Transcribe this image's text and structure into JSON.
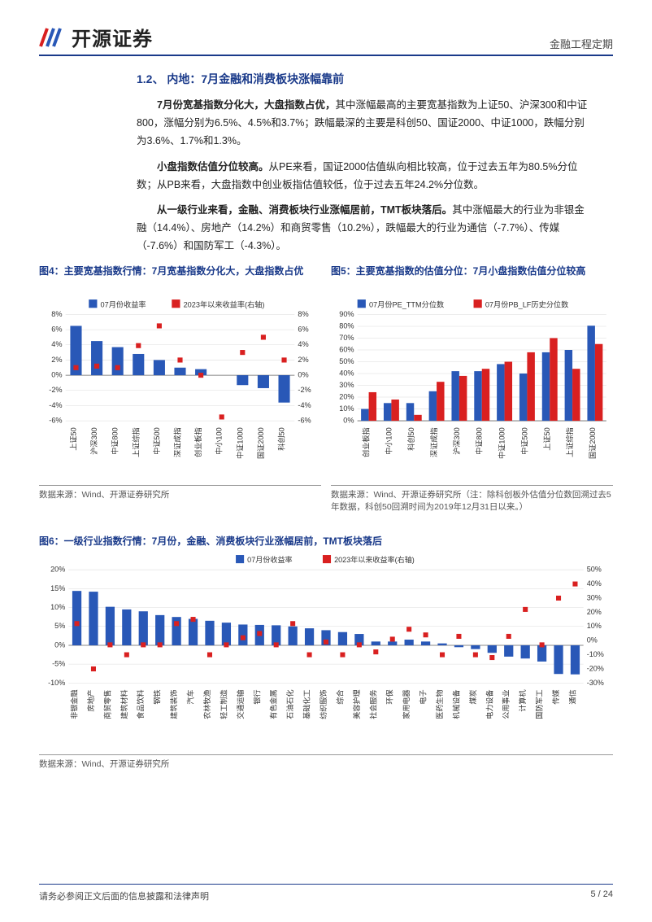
{
  "header": {
    "company": "开源证券",
    "category": "金融工程定期"
  },
  "section": {
    "number_title": "1.2、 内地：7月金融和消费板块涨幅靠前"
  },
  "paragraphs": {
    "p1_bold": "7月份宽基指数分化大，大盘指数占优，",
    "p1_rest": "其中涨幅最高的主要宽基指数为上证50、沪深300和中证800，涨幅分别为6.5%、4.5%和3.7%；跌幅最深的主要是科创50、国证2000、中证1000，跌幅分别为3.6%、1.7%和1.3%。",
    "p2_bold": "小盘指数估值分位较高。",
    "p2_rest": "从PE来看，国证2000估值纵向相比较高，位于过去五年为80.5%分位数；从PB来看，大盘指数中创业板指估值较低，位于过去五年24.2%分位数。",
    "p3_bold": "从一级行业来看，金融、消费板块行业涨幅居前，TMT板块落后。",
    "p3_rest": "其中涨幅最大的行业为非银金融（14.4%）、房地产（14.2%）和商贸零售（10.2%），跌幅最大的行业为通信（-7.7%）、传媒（-7.6%）和国防军工（-4.3%）。"
  },
  "chart4": {
    "title": "图4：主要宽基指数行情：7月宽基指数分化大，大盘指数占优",
    "legend_bar": "07月份收益率",
    "legend_marker": "2023年以来收益率(右轴)",
    "categories": [
      "上证50",
      "沪深300",
      "中证800",
      "上证综指",
      "中证500",
      "深证成指",
      "创业板指",
      "中小100",
      "中证1000",
      "国证2000",
      "科创50"
    ],
    "bar_values": [
      6.5,
      4.5,
      3.7,
      2.8,
      2.0,
      1.0,
      0.8,
      0.0,
      -1.3,
      -1.7,
      -3.6
    ],
    "marker_values": [
      1.0,
      1.2,
      1.0,
      3.9,
      6.5,
      2.0,
      0.0,
      -5.5,
      3.0,
      5.0,
      2.0
    ],
    "y_left": {
      "min": -6,
      "max": 8,
      "step": 2,
      "suffix": "%"
    },
    "y_right": {
      "min": -6,
      "max": 8,
      "step": 2,
      "suffix": "%"
    },
    "bar_color": "#2958b7",
    "marker_color": "#d92020",
    "grid_color": "#dcdcdc",
    "axis_color": "#666666",
    "label_fontsize": 9,
    "source": "数据来源：Wind、开源证券研究所"
  },
  "chart5": {
    "title": "图5：主要宽基指数的估值分位：7月小盘指数估值分位较高",
    "legend_a": "07月份PE_TTM分位数",
    "legend_b": "07月份PB_LF历史分位数",
    "categories": [
      "创业板指",
      "中小100",
      "科创50",
      "深证成指",
      "沪深300",
      "中证800",
      "中证1000",
      "中证500",
      "上证50",
      "上证综指",
      "国证2000"
    ],
    "series_a": [
      10,
      15,
      15,
      25,
      42,
      42,
      48,
      40,
      58,
      60,
      80.5
    ],
    "series_b": [
      24.2,
      18,
      5,
      33,
      38,
      44,
      50,
      58,
      70,
      44,
      65
    ],
    "y": {
      "min": 0,
      "max": 90,
      "step": 10,
      "suffix": "%"
    },
    "color_a": "#2958b7",
    "color_b": "#d92020",
    "grid_color": "#dcdcdc",
    "axis_color": "#666666",
    "label_fontsize": 9,
    "source": "数据来源：Wind、开源证券研究所（注：除科创板外估值分位数回溯过去5年数据，科创50回溯时间为2019年12月31日以来。）"
  },
  "chart6": {
    "title": "图6：一级行业指数行情：7月份，金融、消费板块行业涨幅居前，TMT板块落后",
    "legend_bar": "07月份收益率",
    "legend_marker": "2023年以来收益率(右轴)",
    "categories": [
      "非银金融",
      "房地产",
      "商贸零售",
      "建筑材料",
      "食品饮料",
      "钢铁",
      "建筑装饰",
      "汽车",
      "农林牧渔",
      "轻工制造",
      "交通运输",
      "银行",
      "有色金属",
      "石油石化",
      "基础化工",
      "纺织服饰",
      "综合",
      "美容护理",
      "社会服务",
      "环保",
      "家用电器",
      "电子",
      "医药生物",
      "机械设备",
      "煤炭",
      "电力设备",
      "公用事业",
      "计算机",
      "国防军工",
      "传媒",
      "通信"
    ],
    "bar_values": [
      14.4,
      14.2,
      10.2,
      9.5,
      9.0,
      8.0,
      7.5,
      7.0,
      6.5,
      6.0,
      5.5,
      5.4,
      5.3,
      5.0,
      4.5,
      4.0,
      3.5,
      3.0,
      1.0,
      1.0,
      1.5,
      1.0,
      0.5,
      -0.5,
      -1.0,
      -2.0,
      -3.0,
      -3.5,
      -4.3,
      -7.6,
      -7.7
    ],
    "marker_values": [
      12,
      -20,
      -3,
      -10,
      -3,
      -3,
      12,
      15,
      -10,
      -3,
      2,
      5,
      -3,
      12,
      -10,
      -1,
      -10,
      -3,
      -8,
      1,
      8,
      4,
      -10,
      3,
      -10,
      -12,
      3,
      22,
      -3,
      30,
      40
    ],
    "y_left": {
      "min": -10,
      "max": 20,
      "step": 5,
      "suffix": "%"
    },
    "y_right": {
      "min": -30,
      "max": 50,
      "step": 10,
      "suffix": "%"
    },
    "bar_color": "#2958b7",
    "marker_color": "#d92020",
    "grid_color": "#dcdcdc",
    "axis_color": "#666666",
    "label_fontsize": 9,
    "source": "数据来源：Wind、开源证券研究所"
  },
  "footer": {
    "disclaimer": "请务必参阅正文后面的信息披露和法律声明",
    "page": "5 / 24"
  }
}
